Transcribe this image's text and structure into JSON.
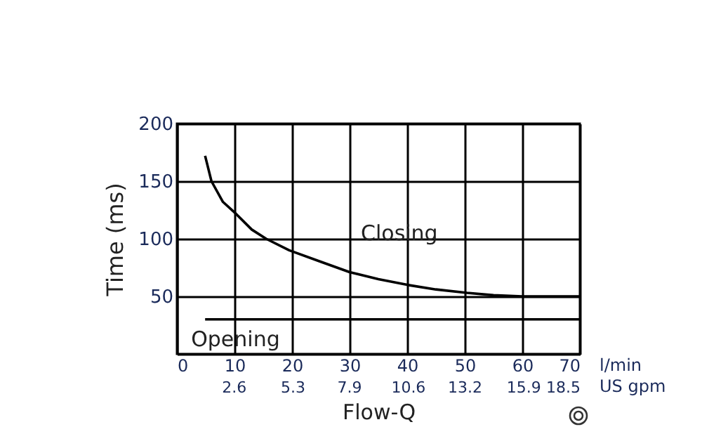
{
  "chart_data": {
    "type": "line",
    "xlabel": "Flow-Q",
    "ylabel": "Time (ms)",
    "xlim": [
      0,
      70
    ],
    "xticks": [
      0,
      10,
      20,
      30,
      40,
      50,
      60,
      70
    ],
    "x2lim": [
      0,
      18.5
    ],
    "x2ticks": [
      2.6,
      5.3,
      7.9,
      10.6,
      13.2,
      15.9,
      18.5
    ],
    "ylim": [
      0,
      200
    ],
    "yticks": [
      50,
      100,
      150,
      200
    ],
    "grid": true,
    "marker": "none",
    "line_style": "solid",
    "annotations": [
      "l/min",
      "US gpm"
    ],
    "series": [
      {
        "name": "Closing",
        "color": "#000000",
        "x": [
          4.9,
          6,
          8,
          10.2,
          13,
          15.5,
          19.5,
          25,
          30,
          35,
          40,
          45,
          50.4,
          55,
          60,
          70
        ],
        "values": [
          172,
          150,
          132,
          122,
          108,
          100,
          90,
          80,
          71,
          65,
          60,
          56,
          53,
          51,
          50,
          50
        ]
      },
      {
        "name": "Opening",
        "color": "#000000",
        "x": [
          4.9,
          70
        ],
        "values": [
          30,
          30
        ]
      }
    ]
  }
}
